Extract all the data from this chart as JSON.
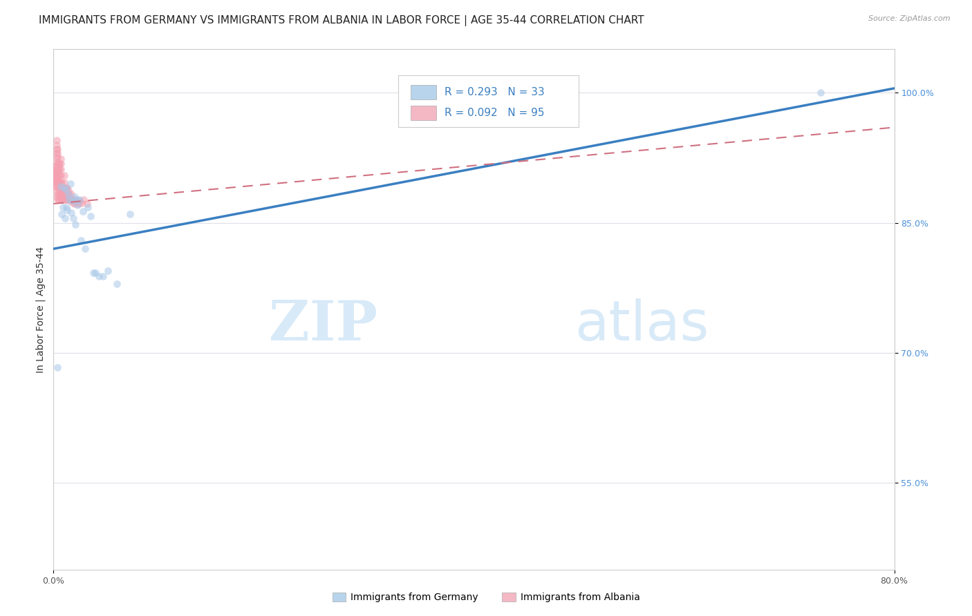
{
  "title": "IMMIGRANTS FROM GERMANY VS IMMIGRANTS FROM ALBANIA IN LABOR FORCE | AGE 35-44 CORRELATION CHART",
  "source": "Source: ZipAtlas.com",
  "ylabel": "In Labor Force | Age 35-44",
  "xlim": [
    0.0,
    0.8
  ],
  "ylim": [
    0.45,
    1.05
  ],
  "y_ticks": [
    0.55,
    0.7,
    0.85,
    1.0
  ],
  "y_tick_labels": [
    "55.0%",
    "70.0%",
    "85.0%",
    "100.0%"
  ],
  "germany_R": 0.293,
  "germany_N": 33,
  "albania_R": 0.092,
  "albania_N": 95,
  "germany_color": "#a8c8e8",
  "albania_color": "#f4a0b0",
  "germany_line_color": "#3a7fc1",
  "albania_line_color": "#d07080",
  "legend_box_color_germany": "#b8d4ec",
  "legend_box_color_albania": "#f4b8c4",
  "watermark_zip": "ZIP",
  "watermark_atlas": "atlas",
  "watermark_color": "#d8eaf8",
  "background_color": "#ffffff",
  "grid_color": "#e0e0e8",
  "title_fontsize": 11,
  "axis_label_fontsize": 10,
  "tick_fontsize": 9,
  "scatter_size": 60,
  "scatter_alpha": 0.55,
  "germany_line_x0": 0.0,
  "germany_line_y0": 0.82,
  "germany_line_x1": 0.8,
  "germany_line_y1": 1.005,
  "albania_line_x0": 0.0,
  "albania_line_y0": 0.872,
  "albania_line_x1": 0.8,
  "albania_line_y1": 0.96,
  "germany_scatter_x": [
    0.004,
    0.007,
    0.008,
    0.009,
    0.01,
    0.011,
    0.012,
    0.012,
    0.013,
    0.014,
    0.015,
    0.016,
    0.017,
    0.018,
    0.019,
    0.02,
    0.021,
    0.022,
    0.023,
    0.025,
    0.026,
    0.028,
    0.03,
    0.033,
    0.035,
    0.038,
    0.04,
    0.043,
    0.047,
    0.052,
    0.06,
    0.073,
    0.73
  ],
  "germany_scatter_y": [
    0.683,
    0.892,
    0.86,
    0.868,
    0.89,
    0.855,
    0.868,
    0.888,
    0.865,
    0.882,
    0.877,
    0.895,
    0.862,
    0.875,
    0.855,
    0.88,
    0.848,
    0.877,
    0.87,
    0.877,
    0.83,
    0.863,
    0.82,
    0.868,
    0.858,
    0.792,
    0.792,
    0.788,
    0.788,
    0.795,
    0.78,
    0.86,
    1.0
  ],
  "albania_scatter_x": [
    0.001,
    0.001,
    0.001,
    0.002,
    0.002,
    0.002,
    0.002,
    0.002,
    0.003,
    0.003,
    0.003,
    0.003,
    0.003,
    0.003,
    0.003,
    0.003,
    0.003,
    0.003,
    0.003,
    0.003,
    0.003,
    0.004,
    0.004,
    0.004,
    0.004,
    0.004,
    0.004,
    0.004,
    0.004,
    0.004,
    0.004,
    0.004,
    0.005,
    0.005,
    0.005,
    0.005,
    0.005,
    0.005,
    0.005,
    0.006,
    0.006,
    0.006,
    0.006,
    0.006,
    0.006,
    0.006,
    0.007,
    0.007,
    0.007,
    0.007,
    0.007,
    0.007,
    0.007,
    0.007,
    0.008,
    0.008,
    0.008,
    0.008,
    0.009,
    0.009,
    0.009,
    0.01,
    0.01,
    0.01,
    0.01,
    0.01,
    0.011,
    0.011,
    0.011,
    0.012,
    0.012,
    0.012,
    0.013,
    0.013,
    0.013,
    0.014,
    0.014,
    0.015,
    0.015,
    0.016,
    0.017,
    0.017,
    0.018,
    0.018,
    0.019,
    0.02,
    0.02,
    0.021,
    0.022,
    0.023,
    0.024,
    0.025,
    0.027,
    0.029,
    0.032
  ],
  "albania_scatter_y": [
    0.897,
    0.903,
    0.91,
    0.893,
    0.9,
    0.905,
    0.91,
    0.915,
    0.88,
    0.887,
    0.893,
    0.9,
    0.905,
    0.91,
    0.915,
    0.92,
    0.925,
    0.93,
    0.935,
    0.94,
    0.945,
    0.877,
    0.883,
    0.89,
    0.897,
    0.903,
    0.91,
    0.915,
    0.92,
    0.925,
    0.93,
    0.935,
    0.877,
    0.883,
    0.89,
    0.897,
    0.905,
    0.912,
    0.918,
    0.877,
    0.883,
    0.89,
    0.897,
    0.905,
    0.912,
    0.918,
    0.877,
    0.883,
    0.89,
    0.897,
    0.905,
    0.912,
    0.918,
    0.924,
    0.877,
    0.883,
    0.89,
    0.897,
    0.877,
    0.883,
    0.89,
    0.877,
    0.883,
    0.89,
    0.897,
    0.905,
    0.877,
    0.883,
    0.89,
    0.877,
    0.883,
    0.89,
    0.877,
    0.883,
    0.89,
    0.88,
    0.887,
    0.877,
    0.883,
    0.875,
    0.877,
    0.883,
    0.877,
    0.875,
    0.873,
    0.872,
    0.877,
    0.875,
    0.875,
    0.872,
    0.872,
    0.875,
    0.873,
    0.877,
    0.872
  ]
}
